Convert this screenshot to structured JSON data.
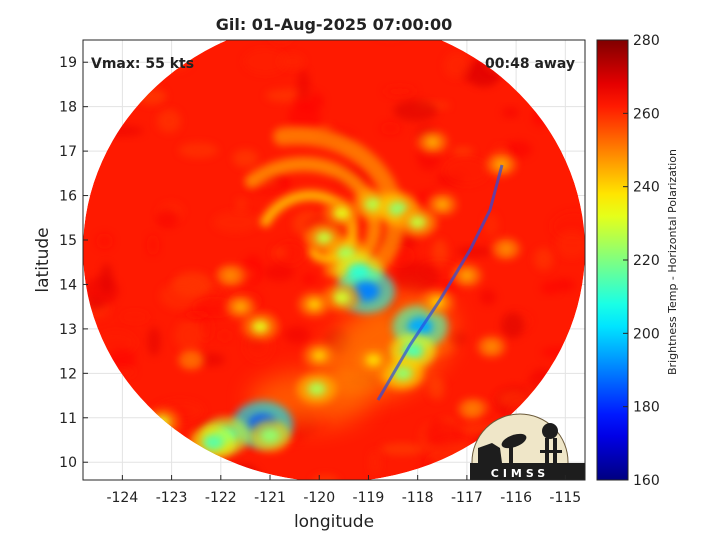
{
  "chart_data": {
    "type": "heatmap",
    "title": "Gil: 01-Aug-2025 07:00:00",
    "annotations": {
      "vmax": "Vmax: 55 kts",
      "time_away": "00:48 away"
    },
    "xlabel": "longitude",
    "ylabel": "latitude",
    "xlim": [
      -124.8,
      -114.6
    ],
    "ylim": [
      9.6,
      19.5
    ],
    "x_ticks": [
      -124,
      -123,
      -122,
      -121,
      -120,
      -119,
      -118,
      -117,
      -116,
      -115
    ],
    "x_tick_labels": [
      "-124",
      "-123",
      "-122",
      "-121",
      "-120",
      "-119",
      "-118",
      "-117",
      "-116",
      "-115"
    ],
    "y_ticks": [
      10,
      11,
      12,
      13,
      14,
      15,
      16,
      17,
      18,
      19
    ],
    "y_tick_labels": [
      "10",
      "11",
      "12",
      "13",
      "14",
      "15",
      "16",
      "17",
      "18",
      "19"
    ],
    "grid": true,
    "colorbar": {
      "label": "Brightness Temp - Horizontal Polarization",
      "range": [
        160,
        280
      ],
      "ticks": [
        160,
        180,
        200,
        220,
        240,
        260,
        280
      ],
      "tick_labels": [
        "160",
        "180",
        "200",
        "220",
        "240",
        "260",
        "280"
      ],
      "colormap": "jet"
    },
    "storm_center": {
      "lon": -120.0,
      "lat": 15.0
    },
    "background_value": 262,
    "features": [
      {
        "lon": -119.9,
        "lat": 15.05,
        "value": 228
      },
      {
        "lon": -119.55,
        "lat": 15.6,
        "value": 232
      },
      {
        "lon": -118.9,
        "lat": 15.8,
        "value": 226
      },
      {
        "lon": -118.4,
        "lat": 15.7,
        "value": 222
      },
      {
        "lon": -118.0,
        "lat": 15.4,
        "value": 228
      },
      {
        "lon": -119.45,
        "lat": 14.7,
        "value": 224
      },
      {
        "lon": -119.2,
        "lat": 14.3,
        "value": 212
      },
      {
        "lon": -119.05,
        "lat": 13.85,
        "value": 190
      },
      {
        "lon": -119.55,
        "lat": 13.7,
        "value": 230
      },
      {
        "lon": -120.1,
        "lat": 13.55,
        "value": 240
      },
      {
        "lon": -117.95,
        "lat": 13.05,
        "value": 195
      },
      {
        "lon": -118.1,
        "lat": 12.5,
        "value": 214
      },
      {
        "lon": -118.3,
        "lat": 12.0,
        "value": 222
      },
      {
        "lon": -117.6,
        "lat": 13.6,
        "value": 240
      },
      {
        "lon": -120.0,
        "lat": 12.4,
        "value": 240
      },
      {
        "lon": -120.05,
        "lat": 11.65,
        "value": 225
      },
      {
        "lon": -121.2,
        "lat": 13.05,
        "value": 232
      },
      {
        "lon": -121.6,
        "lat": 13.5,
        "value": 244
      },
      {
        "lon": -121.8,
        "lat": 14.2,
        "value": 248
      },
      {
        "lon": -121.15,
        "lat": 10.85,
        "value": 185
      },
      {
        "lon": -121.0,
        "lat": 10.6,
        "value": 222
      },
      {
        "lon": -121.9,
        "lat": 10.6,
        "value": 210
      },
      {
        "lon": -122.15,
        "lat": 10.45,
        "value": 215
      },
      {
        "lon": -123.2,
        "lat": 10.9,
        "value": 232
      },
      {
        "lon": -117.5,
        "lat": 15.8,
        "value": 244
      },
      {
        "lon": -117.0,
        "lat": 14.2,
        "value": 245
      },
      {
        "lon": -116.2,
        "lat": 14.8,
        "value": 248
      },
      {
        "lon": -117.7,
        "lat": 17.2,
        "value": 244
      },
      {
        "lon": -116.3,
        "lat": 16.7,
        "value": 244
      },
      {
        "lon": -116.9,
        "lat": 11.2,
        "value": 250
      },
      {
        "lon": -116.5,
        "lat": 12.6,
        "value": 248
      },
      {
        "lon": -122.6,
        "lat": 12.3,
        "value": 252
      },
      {
        "lon": -118.9,
        "lat": 12.3,
        "value": 238
      }
    ]
  },
  "colors": {
    "swath_bg": "#1a3fd9",
    "axes_frame": "#262626",
    "grid": "#e3e3e3"
  },
  "logo": {
    "text": "CIMSS"
  }
}
